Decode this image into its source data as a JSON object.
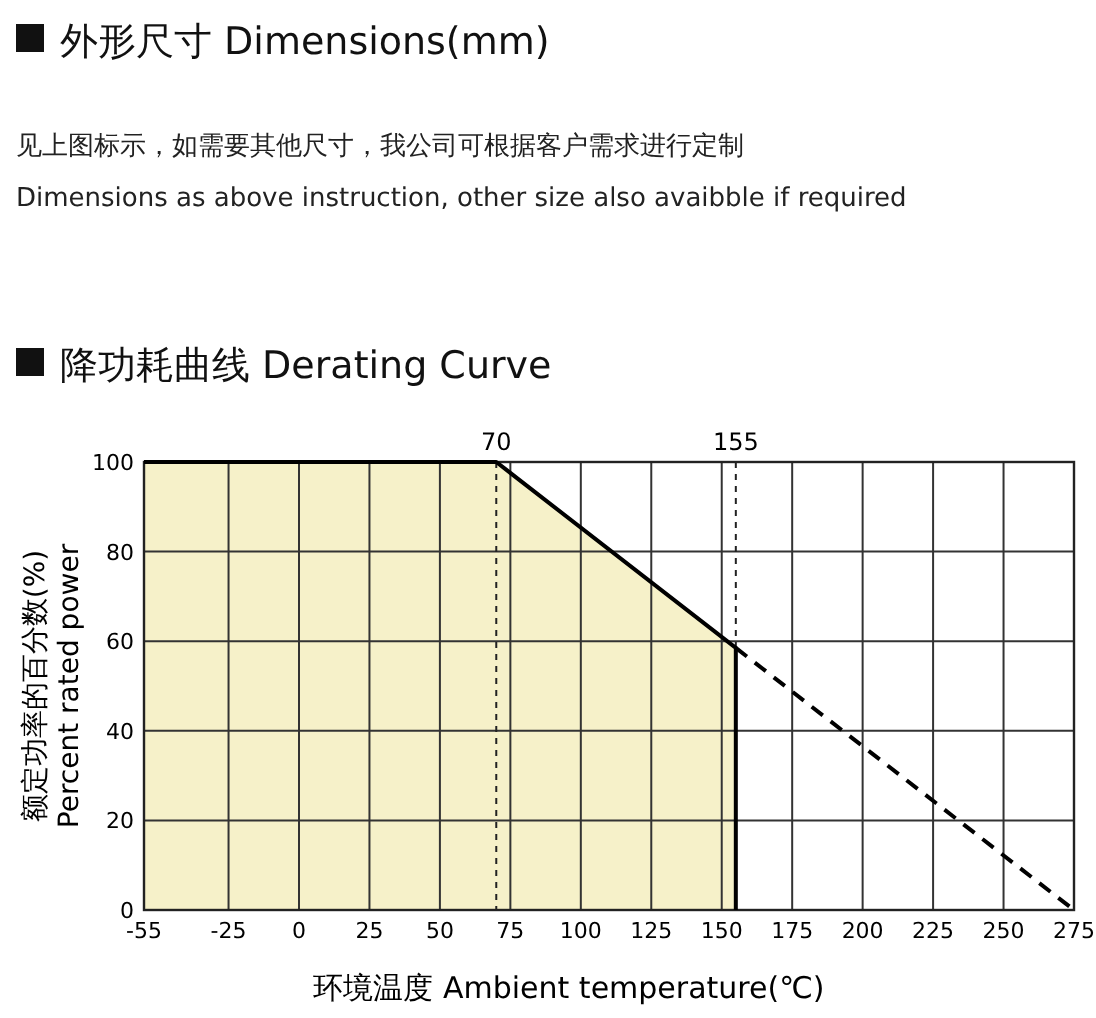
{
  "chart_data": {
    "type": "area",
    "title": "降功耗曲线 Derating Curve",
    "annotations": [
      "外形尺寸 Dimensions(mm)",
      "见上图标示，如需要其他尺寸，我公司可根据客户需求进行定制",
      "Dimensions as above instruction, other size also avaibble if required"
    ],
    "xlabel": "环境温度 Ambient temperature(℃)",
    "ylabel": "额定功率的百分数(%)\nPercent rated power",
    "series": [
      {
        "type": "area",
        "x": [
          -55,
          70,
          155
        ],
        "values": [
          100,
          100,
          58.5
        ],
        "color": "#f6f1c9"
      },
      {
        "type": "line",
        "x": [
          155,
          275
        ],
        "values": [
          58.5,
          0
        ],
        "color": "#000000",
        "line_style": "dashed"
      }
    ],
    "xlim": [
      -55,
      275
    ],
    "xticks": [
      -55,
      -25,
      0,
      25,
      50,
      75,
      100,
      125,
      150,
      175,
      200,
      225,
      250,
      275
    ],
    "ylim": [
      0,
      100
    ],
    "yticks": [
      0,
      20,
      40,
      60,
      80,
      100
    ],
    "grid": true,
    "ref_lines": [
      {
        "axis": "x",
        "value": 70,
        "label": "70",
        "line_style": "dotted"
      },
      {
        "axis": "x",
        "value": 155,
        "label": "155",
        "line_style": "dotted"
      }
    ]
  }
}
